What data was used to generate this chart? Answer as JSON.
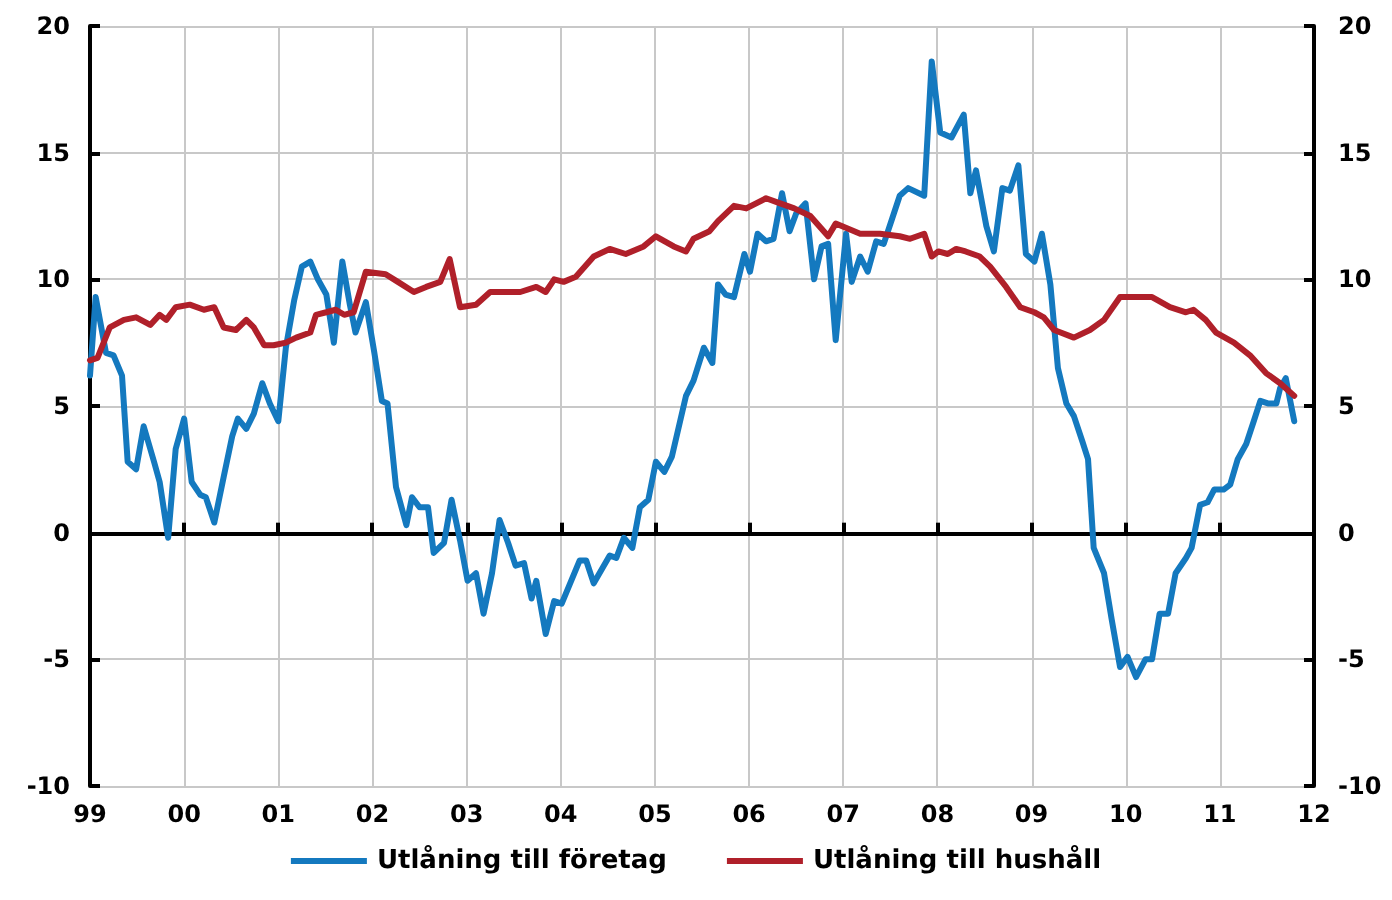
{
  "chart_data": {
    "type": "line",
    "xlim": [
      1999,
      2012
    ],
    "xticks": [
      {
        "value": 1999,
        "label": "99"
      },
      {
        "value": 2000,
        "label": "00"
      },
      {
        "value": 2001,
        "label": "01"
      },
      {
        "value": 2002,
        "label": "02"
      },
      {
        "value": 2003,
        "label": "03"
      },
      {
        "value": 2004,
        "label": "04"
      },
      {
        "value": 2005,
        "label": "05"
      },
      {
        "value": 2006,
        "label": "06"
      },
      {
        "value": 2007,
        "label": "07"
      },
      {
        "value": 2008,
        "label": "08"
      },
      {
        "value": 2009,
        "label": "09"
      },
      {
        "value": 2010,
        "label": "10"
      },
      {
        "value": 2011,
        "label": "11"
      },
      {
        "value": 2012,
        "label": "12"
      }
    ],
    "ylim": [
      -10,
      20
    ],
    "yticks": [
      -10,
      -5,
      0,
      5,
      10,
      15,
      20
    ],
    "y2lim": [
      -10,
      20
    ],
    "y2ticks": [
      -10,
      -5,
      0,
      5,
      10,
      15,
      20
    ],
    "grid": true,
    "legend": "bottom",
    "marker": "none",
    "line_style": "solid",
    "series": [
      {
        "name": "Utlåning till företag",
        "color": "#1479bf",
        "x": [
          1999.0,
          1999.06,
          1999.17,
          1999.25,
          1999.34,
          1999.4,
          1999.49,
          1999.57,
          1999.68,
          1999.74,
          1999.83,
          1999.91,
          2000.0,
          2000.08,
          2000.17,
          2000.23,
          2000.32,
          2000.42,
          2000.51,
          2000.57,
          2000.66,
          2000.74,
          2000.83,
          2000.91,
          2001.0,
          2001.08,
          2001.17,
          2001.25,
          2001.34,
          2001.42,
          2001.51,
          2001.59,
          2001.68,
          2001.76,
          2001.82,
          2001.93,
          2002.02,
          2002.1,
          2002.16,
          2002.25,
          2002.36,
          2002.42,
          2002.5,
          2002.59,
          2002.65,
          2002.76,
          2002.84,
          2002.93,
          2003.01,
          2003.1,
          2003.18,
          2003.27,
          2003.35,
          2003.44,
          2003.52,
          2003.61,
          2003.69,
          2003.74,
          2003.84,
          2003.93,
          2004.01,
          2004.2,
          2004.27,
          2004.35,
          2004.52,
          2004.59,
          2004.67,
          2004.76,
          2004.84,
          2004.93,
          2005.01,
          2005.1,
          2005.18,
          2005.33,
          2005.41,
          2005.52,
          2005.61,
          2005.67,
          2005.75,
          2005.84,
          2005.95,
          2006.01,
          2006.09,
          2006.18,
          2006.26,
          2006.35,
          2006.43,
          2006.5,
          2006.6,
          2006.69,
          2006.77,
          2006.84,
          2006.92,
          2007.03,
          2007.09,
          2007.18,
          2007.26,
          2007.35,
          2007.43,
          2007.52,
          2007.6,
          2007.69,
          2007.86,
          2007.94,
          2008.03,
          2008.15,
          2008.28,
          2008.35,
          2008.41,
          2008.52,
          2008.6,
          2008.69,
          2008.77,
          2008.86,
          2008.94,
          2009.03,
          2009.11,
          2009.2,
          2009.28,
          2009.37,
          2009.45,
          2009.54,
          2009.6,
          2009.66,
          2009.77,
          2009.85,
          2009.94,
          2010.02,
          2010.11,
          2010.21,
          2010.28,
          2010.36,
          2010.45,
          2010.53,
          2010.64,
          2010.7,
          2010.79,
          2010.87,
          2010.94,
          2011.04,
          2011.11,
          2011.19,
          2011.28,
          2011.36,
          2011.43,
          2011.51,
          2011.6,
          2011.64,
          2011.7,
          2011.79
        ],
        "values": [
          6.2,
          9.3,
          7.1,
          7.0,
          6.2,
          2.8,
          2.5,
          4.2,
          2.8,
          2.0,
          -0.2,
          3.3,
          4.5,
          2.0,
          1.5,
          1.4,
          0.4,
          2.2,
          3.8,
          4.5,
          4.1,
          4.7,
          5.9,
          5.1,
          4.4,
          7.3,
          9.2,
          10.5,
          10.7,
          10.0,
          9.4,
          7.5,
          10.7,
          9.0,
          7.9,
          9.1,
          7.1,
          5.2,
          5.1,
          1.8,
          0.3,
          1.4,
          1.0,
          1.0,
          -0.8,
          -0.4,
          1.3,
          -0.3,
          -1.9,
          -1.6,
          -3.2,
          -1.6,
          0.5,
          -0.4,
          -1.3,
          -1.2,
          -2.6,
          -1.9,
          -4.0,
          -2.7,
          -2.8,
          -1.1,
          -1.1,
          -2.0,
          -0.9,
          -1.0,
          -0.2,
          -0.6,
          1.0,
          1.3,
          2.8,
          2.4,
          3.0,
          5.4,
          6.0,
          7.3,
          6.7,
          9.8,
          9.4,
          9.3,
          11.0,
          10.3,
          11.8,
          11.5,
          11.6,
          13.4,
          11.9,
          12.6,
          13.0,
          10.0,
          11.3,
          11.4,
          7.6,
          11.8,
          9.9,
          10.9,
          10.3,
          11.5,
          11.4,
          12.4,
          13.3,
          13.6,
          13.3,
          18.6,
          15.8,
          15.6,
          16.5,
          13.4,
          14.3,
          12.1,
          11.1,
          13.6,
          13.5,
          14.5,
          11.0,
          10.7,
          11.8,
          9.8,
          6.5,
          5.1,
          4.6,
          3.6,
          2.9,
          -0.6,
          -1.6,
          -3.4,
          -5.3,
          -4.9,
          -5.7,
          -5.0,
          -5.0,
          -3.2,
          -3.2,
          -1.6,
          -1.0,
          -0.6,
          1.1,
          1.2,
          1.7,
          1.7,
          1.9,
          2.9,
          3.5,
          4.4,
          5.2,
          5.1,
          5.1,
          5.7,
          6.1,
          4.4
        ]
      },
      {
        "name": "Utlåning till hushåll",
        "color": "#b0202a",
        "x": [
          1999.0,
          1999.08,
          1999.21,
          1999.36,
          1999.49,
          1999.64,
          1999.74,
          1999.81,
          1999.91,
          2000.06,
          2000.21,
          2000.32,
          2000.42,
          2000.55,
          2000.66,
          2000.74,
          2000.85,
          2000.95,
          2001.08,
          2001.19,
          2001.34,
          2001.4,
          2001.51,
          2001.61,
          2001.7,
          2001.8,
          2001.93,
          2002.14,
          2002.27,
          2002.44,
          2002.57,
          2002.72,
          2002.82,
          2002.93,
          2003.1,
          2003.25,
          2003.42,
          2003.57,
          2003.74,
          2003.84,
          2003.93,
          2004.03,
          2004.16,
          2004.35,
          2004.52,
          2004.69,
          2004.88,
          2005.01,
          2005.2,
          2005.33,
          2005.41,
          2005.58,
          2005.67,
          2005.84,
          2005.97,
          2006.18,
          2006.33,
          2006.48,
          2006.65,
          2006.84,
          2006.92,
          2007.18,
          2007.39,
          2007.6,
          2007.71,
          2007.86,
          2007.94,
          2008.01,
          2008.11,
          2008.2,
          2008.3,
          2008.45,
          2008.56,
          2008.73,
          2008.88,
          2009.03,
          2009.13,
          2009.24,
          2009.45,
          2009.62,
          2009.77,
          2009.94,
          2010.15,
          2010.28,
          2010.47,
          2010.64,
          2010.72,
          2010.85,
          2010.96,
          2011.15,
          2011.32,
          2011.49,
          2011.64,
          2011.79
        ],
        "values": [
          6.8,
          6.9,
          8.1,
          8.4,
          8.5,
          8.2,
          8.6,
          8.4,
          8.9,
          9.0,
          8.8,
          8.9,
          8.1,
          8.0,
          8.4,
          8.1,
          7.4,
          7.4,
          7.5,
          7.7,
          7.9,
          8.6,
          8.7,
          8.8,
          8.6,
          8.7,
          10.3,
          10.2,
          9.9,
          9.5,
          9.7,
          9.9,
          10.8,
          8.9,
          9.0,
          9.5,
          9.5,
          9.5,
          9.7,
          9.5,
          10.0,
          9.9,
          10.1,
          10.9,
          11.2,
          11.0,
          11.3,
          11.7,
          11.3,
          11.1,
          11.6,
          11.9,
          12.3,
          12.9,
          12.8,
          13.2,
          13.0,
          12.8,
          12.5,
          11.7,
          12.2,
          11.8,
          11.8,
          11.7,
          11.6,
          11.8,
          10.9,
          11.1,
          11.0,
          11.2,
          11.1,
          10.9,
          10.5,
          9.7,
          8.9,
          8.7,
          8.5,
          8.0,
          7.7,
          8.0,
          8.4,
          9.3,
          9.3,
          9.3,
          8.9,
          8.7,
          8.8,
          8.4,
          7.9,
          7.5,
          7.0,
          6.3,
          5.9,
          5.4
        ]
      }
    ]
  }
}
